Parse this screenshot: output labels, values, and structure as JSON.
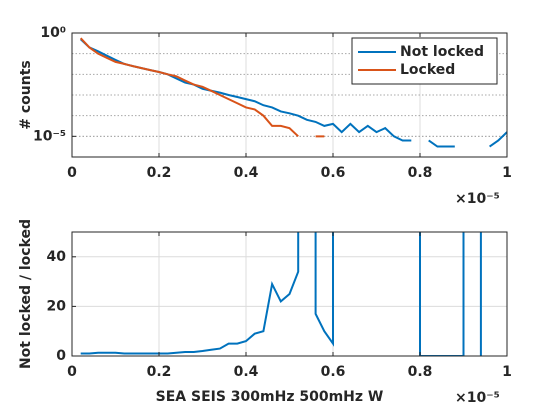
{
  "chart_data": [
    {
      "type": "line",
      "yscale": "log",
      "grid": true,
      "legend": "northeast",
      "ylabel": "# counts",
      "x_exponent_label": "×10⁻⁵",
      "xlim": [
        0,
        1
      ],
      "xticks": [
        0,
        0.2,
        0.4,
        0.6,
        0.8,
        1
      ],
      "ylim": [
        1e-06,
        1
      ],
      "yticks": [
        {
          "value": 1,
          "label": "10⁰"
        },
        {
          "value": 1e-05,
          "label": "10⁻⁵"
        }
      ],
      "x": [
        0.02,
        0.04,
        0.06,
        0.08,
        0.1,
        0.12,
        0.14,
        0.16,
        0.18,
        0.2,
        0.22,
        0.24,
        0.26,
        0.28,
        0.3,
        0.32,
        0.34,
        0.36,
        0.38,
        0.4,
        0.42,
        0.44,
        0.46,
        0.48,
        0.5,
        0.52,
        0.54,
        0.56,
        0.58,
        0.6,
        0.62,
        0.64,
        0.66,
        0.68,
        0.7,
        0.72,
        0.74,
        0.76,
        0.78,
        0.8,
        0.82,
        0.84,
        0.86,
        0.88,
        0.9,
        0.92,
        0.94,
        0.96,
        0.98,
        1
      ],
      "series": [
        {
          "name": "Not locked",
          "color": "#0072bd",
          "values": [
            0.5,
            0.2,
            0.13,
            0.08,
            0.05,
            0.032,
            0.025,
            0.02,
            0.016,
            0.013,
            0.01,
            0.0063,
            0.004,
            0.0032,
            0.002,
            0.0016,
            0.0013,
            0.001,
            0.0008,
            0.00063,
            0.0005,
            0.00032,
            0.00025,
            0.00016,
            0.00013,
            0.0001,
            6.3e-05,
            5e-05,
            3.2e-05,
            4e-05,
            1.6e-05,
            4e-05,
            1.6e-05,
            3.2e-05,
            1.6e-05,
            2.5e-05,
            1e-05,
            6.3e-06,
            6.3e-06,
            null,
            6.3e-06,
            3.2e-06,
            3.2e-06,
            3.2e-06,
            null,
            null,
            null,
            3.2e-06,
            6.3e-06,
            1.6e-05
          ]
        },
        {
          "name": "Locked",
          "color": "#d95319",
          "values": [
            0.56,
            0.2,
            0.1,
            0.063,
            0.04,
            0.032,
            0.025,
            0.02,
            0.016,
            0.013,
            0.01,
            0.008,
            0.005,
            0.0032,
            0.0025,
            0.0016,
            0.001,
            0.00063,
            0.0004,
            0.00025,
            0.0002,
            0.0001,
            3.2e-05,
            3.2e-05,
            2.5e-05,
            1e-05,
            null,
            1e-05,
            1e-05,
            null,
            null,
            null,
            null,
            null,
            null,
            null,
            null,
            null,
            null,
            null,
            null,
            null,
            null,
            null,
            null,
            null,
            null,
            null,
            null,
            null
          ]
        }
      ]
    },
    {
      "type": "line",
      "grid": true,
      "ylabel": "Not locked / locked",
      "xlabel": "SEA SEIS 300mHz 500mHz W",
      "x_exponent_label": "×10⁻⁵",
      "xlim": [
        0,
        1
      ],
      "xticks": [
        0,
        0.2,
        0.4,
        0.6,
        0.8,
        1
      ],
      "ylim": [
        0,
        50
      ],
      "yticks": [
        0,
        20,
        40
      ],
      "x": [
        0.02,
        0.04,
        0.06,
        0.08,
        0.1,
        0.12,
        0.14,
        0.16,
        0.18,
        0.2,
        0.22,
        0.24,
        0.26,
        0.28,
        0.3,
        0.32,
        0.34,
        0.36,
        0.38,
        0.4,
        0.42,
        0.44,
        0.46,
        0.48,
        0.5,
        0.52,
        0.52,
        0.54,
        0.56,
        0.56,
        0.58,
        0.6,
        0.6,
        0.7,
        0.8,
        0.8,
        0.9,
        0.9,
        0.92,
        0.94,
        0.94
      ],
      "series": [
        {
          "color": "#0072bd",
          "values": [
            1,
            1,
            1.3,
            1.3,
            1.3,
            1,
            1,
            1,
            1,
            1,
            1,
            1.3,
            1.6,
            1.6,
            2,
            2.5,
            3,
            5,
            5,
            6,
            9,
            10,
            29,
            22,
            25,
            34,
            60,
            null,
            60,
            17,
            10,
            5,
            60,
            null,
            60,
            0,
            0,
            60,
            null,
            60,
            0
          ]
        }
      ]
    }
  ]
}
